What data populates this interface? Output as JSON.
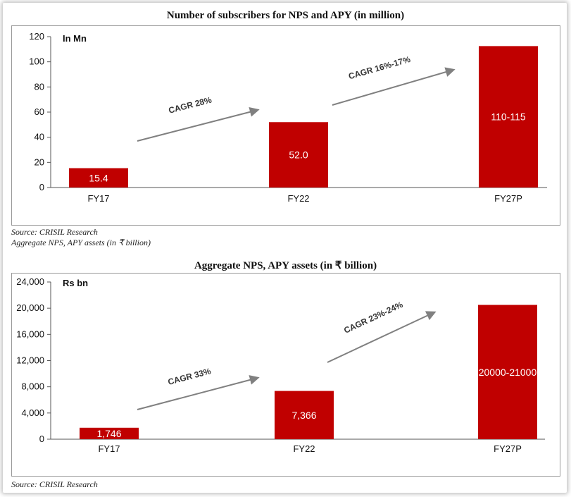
{
  "chart_data": [
    {
      "type": "bar",
      "title": "Number of subscribers for NPS and APY (in million)",
      "unit_label": "In Mn",
      "categories": [
        "FY17",
        "FY22",
        "FY27P"
      ],
      "values": [
        15.4,
        52.0,
        112.5
      ],
      "data_labels": [
        "15.4",
        "52.0",
        "110-115"
      ],
      "ylim": [
        0,
        120
      ],
      "yticks": [
        0,
        20,
        40,
        60,
        80,
        100,
        120
      ],
      "ytick_labels": [
        "0",
        "20",
        "40",
        "60",
        "80",
        "100",
        "120"
      ],
      "annotations": [
        "CAGR 28%",
        "CAGR 16%-17%"
      ],
      "bar_color": "#c00000",
      "grid": false,
      "legend": "none"
    },
    {
      "type": "bar",
      "title": "Aggregate NPS, APY assets (in ₹ billion)",
      "unit_label": "Rs bn",
      "categories": [
        "FY17",
        "FY22",
        "FY27P"
      ],
      "values": [
        1746,
        7366,
        20500
      ],
      "data_labels": [
        "1,746",
        "7,366",
        "20000-21000"
      ],
      "ylim": [
        0,
        24000
      ],
      "yticks": [
        0,
        4000,
        8000,
        12000,
        16000,
        20000,
        24000
      ],
      "ytick_labels": [
        "0",
        "4,000",
        "8,000",
        "12,000",
        "16,000",
        "20,000",
        "24,000"
      ],
      "annotations": [
        "CAGR 33%",
        "CAGR 23%-24%"
      ],
      "bar_color": "#c00000",
      "grid": false,
      "legend": "none"
    }
  ],
  "sources": {
    "top_source": "Source: CRISIL Research",
    "top_caption": "Aggregate NPS, APY assets (in ₹ billion)",
    "bottom_source": "Source: CRISIL Research"
  },
  "colors": {
    "bar": "#c00000",
    "arrow": "#808080"
  }
}
